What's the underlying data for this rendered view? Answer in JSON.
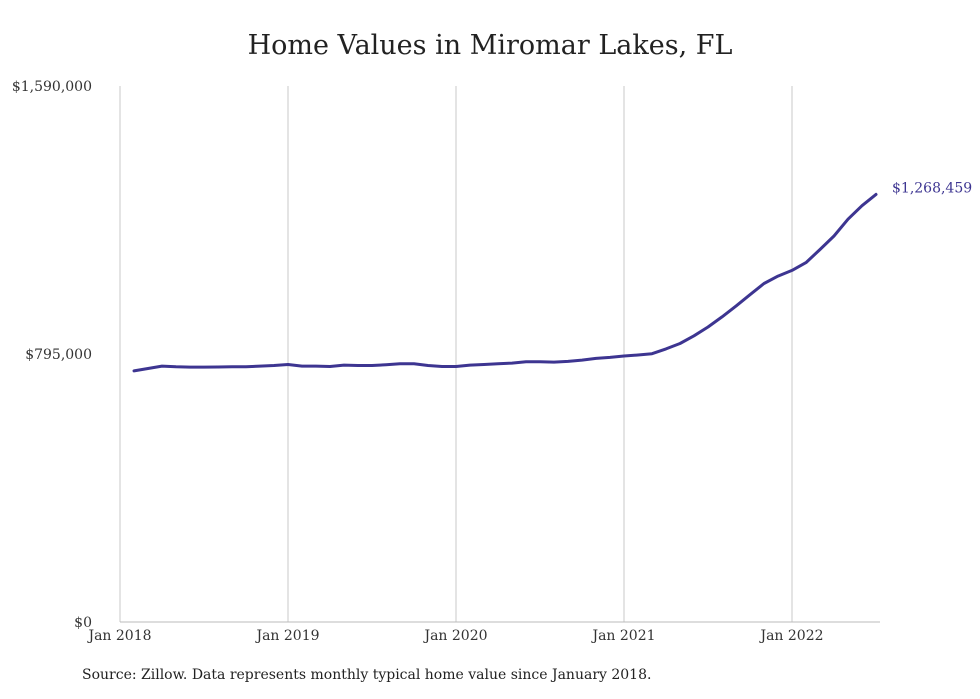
{
  "chart_data": {
    "type": "line",
    "title": "Home Values in Miromar Lakes, FL",
    "xlabel": "",
    "ylabel": "",
    "ylim": [
      0,
      1590000
    ],
    "y_ticks": [
      "$0",
      "$795,000",
      "$1,590,000"
    ],
    "y_tick_values": [
      0,
      795000,
      1590000
    ],
    "x_ticks": [
      "Jan 2018",
      "Jan 2019",
      "Jan 2020",
      "Jan 2021",
      "Jan 2022"
    ],
    "x_tick_values": [
      "2018-01",
      "2019-01",
      "2020-01",
      "2021-01",
      "2022-01"
    ],
    "grid": "vertical",
    "series": [
      {
        "name": "",
        "color": "#3d3591",
        "x": [
          "2018-02",
          "2018-03",
          "2018-04",
          "2018-05",
          "2018-06",
          "2018-07",
          "2018-08",
          "2018-09",
          "2018-10",
          "2018-11",
          "2018-12",
          "2019-01",
          "2019-02",
          "2019-03",
          "2019-04",
          "2019-05",
          "2019-06",
          "2019-07",
          "2019-08",
          "2019-09",
          "2019-10",
          "2019-11",
          "2019-12",
          "2020-01",
          "2020-02",
          "2020-03",
          "2020-04",
          "2020-05",
          "2020-06",
          "2020-07",
          "2020-08",
          "2020-09",
          "2020-10",
          "2020-11",
          "2020-12",
          "2021-01",
          "2021-02",
          "2021-03",
          "2021-04",
          "2021-05",
          "2021-06",
          "2021-07",
          "2021-08",
          "2021-09",
          "2021-10",
          "2021-11",
          "2021-12",
          "2022-01",
          "2022-02",
          "2022-03",
          "2022-04",
          "2022-05",
          "2022-06",
          "2022-07"
        ],
        "values": [
          745000,
          752000,
          759000,
          757000,
          756000,
          756000,
          756500,
          757000,
          757000,
          759000,
          761000,
          764000,
          759000,
          759000,
          758000,
          762000,
          761000,
          761000,
          763000,
          766000,
          766000,
          761000,
          758000,
          758000,
          762000,
          764000,
          766000,
          768000,
          772000,
          772000,
          771000,
          773000,
          777000,
          782000,
          785000,
          789000,
          792000,
          796000,
          810000,
          826000,
          849000,
          875000,
          905000,
          937000,
          971000,
          1004000,
          1026000,
          1043000,
          1066000,
          1105000,
          1145000,
          1195000,
          1235000,
          1268459
        ]
      }
    ],
    "end_label": "$1,268,459"
  },
  "source_note": "Source: Zillow. Data represents monthly typical home value since January 2018."
}
